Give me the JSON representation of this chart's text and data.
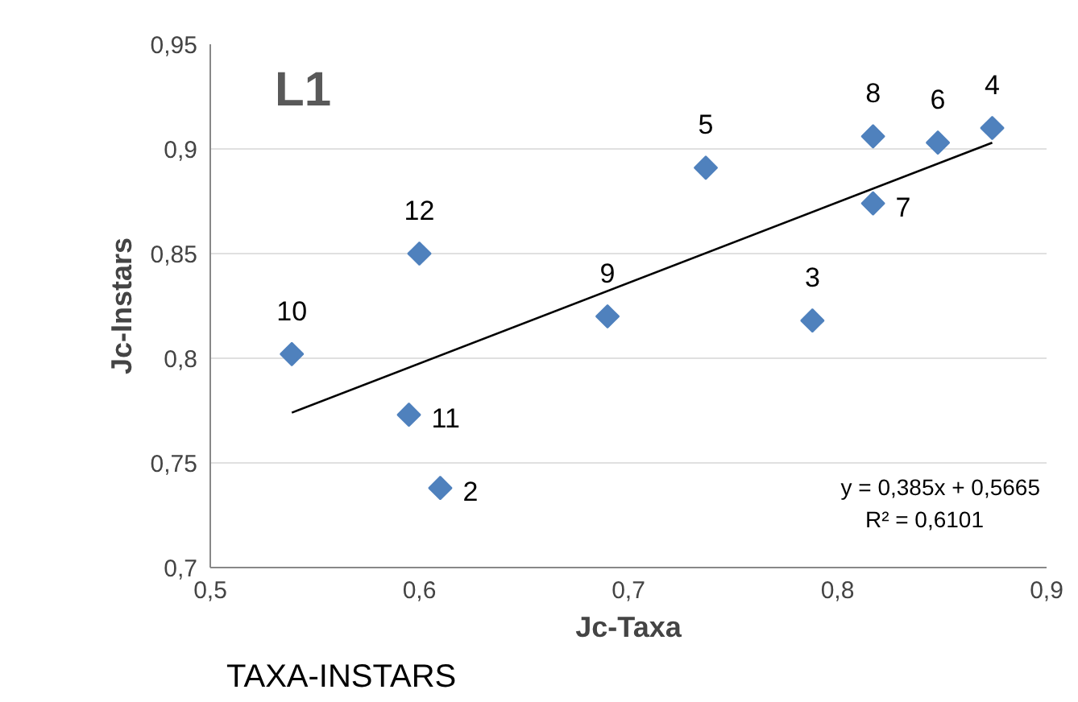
{
  "chart_data": {
    "type": "scatter",
    "xlabel": "Jc-Taxa",
    "ylabel": "Jc-Instars",
    "xlim": [
      0.5,
      0.9
    ],
    "ylim": [
      0.7,
      0.95
    ],
    "xticks": [
      {
        "value": 0.5,
        "label": "0,5"
      },
      {
        "value": 0.6,
        "label": "0,6"
      },
      {
        "value": 0.7,
        "label": "0,7"
      },
      {
        "value": 0.8,
        "label": "0,8"
      },
      {
        "value": 0.9,
        "label": "0,9"
      }
    ],
    "yticks": [
      {
        "value": 0.7,
        "label": "0,7"
      },
      {
        "value": 0.75,
        "label": "0,75"
      },
      {
        "value": 0.8,
        "label": "0,8"
      },
      {
        "value": 0.85,
        "label": "0,85"
      },
      {
        "value": 0.9,
        "label": "0,9"
      },
      {
        "value": 0.95,
        "label": "0,95"
      }
    ],
    "grid": "y",
    "marker": "diamond",
    "series": [
      {
        "color": "#4f81bd",
        "x": [
          0.539,
          0.6,
          0.595,
          0.61,
          0.69,
          0.737,
          0.788,
          0.817,
          0.817,
          0.848,
          0.874
        ],
        "values": [
          0.802,
          0.85,
          0.773,
          0.738,
          0.82,
          0.891,
          0.818,
          0.906,
          0.874,
          0.903,
          0.91
        ]
      },
      {
        "type": "line",
        "color": "#000000",
        "marker": "none",
        "x": [
          0.539,
          0.874
        ],
        "values": [
          0.774,
          0.903
        ]
      }
    ],
    "annotations": [
      "L1",
      "y = 0,385x + 0,5665\nR² = 0,6101",
      "TAXA-INSTARS",
      {
        "text": "10",
        "x": 0.539,
        "y": 0.802
      },
      {
        "text": "12",
        "x": 0.6,
        "y": 0.85
      },
      {
        "text": "11",
        "x": 0.595,
        "y": 0.773
      },
      {
        "text": "2",
        "x": 0.61,
        "y": 0.738
      },
      {
        "text": "9",
        "x": 0.69,
        "y": 0.82
      },
      {
        "text": "5",
        "x": 0.737,
        "y": 0.891
      },
      {
        "text": "3",
        "x": 0.788,
        "y": 0.818
      },
      {
        "text": "8",
        "x": 0.817,
        "y": 0.906
      },
      {
        "text": "7",
        "x": 0.817,
        "y": 0.874
      },
      {
        "text": "6",
        "x": 0.848,
        "y": 0.903
      },
      {
        "text": "4",
        "x": 0.874,
        "y": 0.91
      }
    ]
  }
}
